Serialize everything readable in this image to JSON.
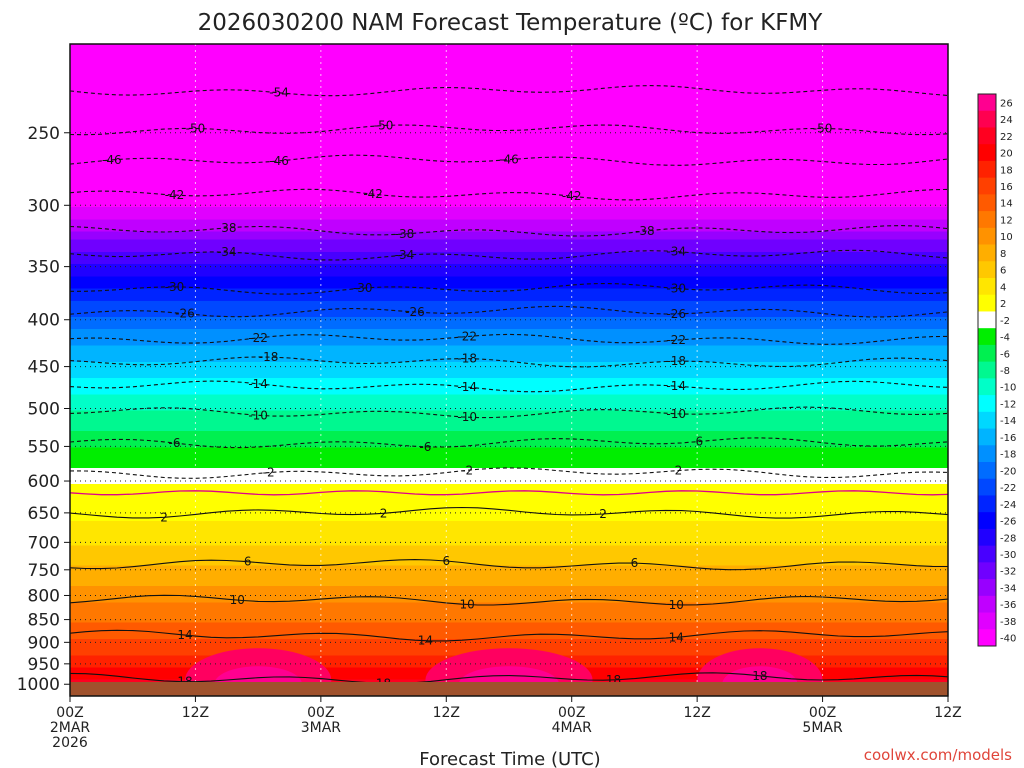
{
  "chart_data": {
    "type": "heatmap",
    "title": "2026030200 NAM Forecast Temperature (ºC) for KFMY",
    "xlabel": "Forecast Time (UTC)",
    "ylabel": "",
    "credit": "coolwx.com/models",
    "x_hours_range": [
      0,
      84
    ],
    "y_pressure_range": [
      1030,
      200
    ],
    "pressure_ticks": [
      250,
      300,
      350,
      400,
      450,
      500,
      550,
      600,
      650,
      700,
      750,
      800,
      850,
      900,
      950,
      1000
    ],
    "time_ticks": [
      {
        "hour": 0,
        "line1": "00Z",
        "line2": "2MAR",
        "line3": "2026"
      },
      {
        "hour": 12,
        "line1": "12Z",
        "line2": "",
        "line3": ""
      },
      {
        "hour": 24,
        "line1": "00Z",
        "line2": "3MAR",
        "line3": ""
      },
      {
        "hour": 36,
        "line1": "12Z",
        "line2": "",
        "line3": ""
      },
      {
        "hour": 48,
        "line1": "00Z",
        "line2": "4MAR",
        "line3": ""
      },
      {
        "hour": 60,
        "line1": "12Z",
        "line2": "",
        "line3": ""
      },
      {
        "hour": 72,
        "line1": "00Z",
        "line2": "5MAR",
        "line3": ""
      },
      {
        "hour": 84,
        "line1": "12Z",
        "line2": "",
        "line3": ""
      }
    ],
    "colorbar_labels": [
      "26",
      "24",
      "22",
      "20",
      "18",
      "16",
      "14",
      "12",
      "10",
      "8",
      "6",
      "4",
      "2",
      "-2",
      "-4",
      "-6",
      "-8",
      "-10",
      "-12",
      "-14",
      "-16",
      "-18",
      "-20",
      "-22",
      "-24",
      "-26",
      "-28",
      "-30",
      "-32",
      "-34",
      "-36",
      "-38",
      "-40"
    ],
    "colorbar_colors": [
      "#ff0090",
      "#ff0050",
      "#ff0020",
      "#ff0000",
      "#ff2200",
      "#ff4000",
      "#ff5a00",
      "#ff7800",
      "#ff9200",
      "#ffae00",
      "#ffc800",
      "#ffe600",
      "#ffff00",
      "#ffffff",
      "#00ee00",
      "#00f050",
      "#00f890",
      "#00ffc8",
      "#00ffff",
      "#00d8ff",
      "#00b4ff",
      "#0090ff",
      "#006cff",
      "#0048ff",
      "#0024ff",
      "#0000ff",
      "#2000ff",
      "#4800ff",
      "#7000ff",
      "#9800ff",
      "#c000ff",
      "#e000ff",
      "#ff00ff"
    ],
    "profile": [
      {
        "p": 1010,
        "t": 22
      },
      {
        "p": 1000,
        "t": 21
      },
      {
        "p": 975,
        "t": 19.5
      },
      {
        "p": 950,
        "t": 17.5
      },
      {
        "p": 925,
        "t": 16
      },
      {
        "p": 900,
        "t": 14.5
      },
      {
        "p": 850,
        "t": 12
      },
      {
        "p": 800,
        "t": 9.5
      },
      {
        "p": 750,
        "t": 6.5
      },
      {
        "p": 700,
        "t": 4
      },
      {
        "p": 650,
        "t": 1.5
      },
      {
        "p": 625,
        "t": 0
      },
      {
        "p": 600,
        "t": -2
      },
      {
        "p": 550,
        "t": -6
      },
      {
        "p": 500,
        "t": -10
      },
      {
        "p": 450,
        "t": -15
      },
      {
        "p": 400,
        "t": -21
      },
      {
        "p": 350,
        "t": -29
      },
      {
        "p": 300,
        "t": -40
      },
      {
        "p": 250,
        "t": -48
      },
      {
        "p": 200,
        "t": -57
      }
    ],
    "contours": [
      {
        "level": "-54",
        "p": 225,
        "label_hours": [
          20
        ]
      },
      {
        "level": "-50",
        "p": 248,
        "label_hours": [
          12,
          30,
          72
        ]
      },
      {
        "level": "-46",
        "p": 268,
        "label_hours": [
          4,
          20,
          42
        ]
      },
      {
        "level": "-42",
        "p": 292,
        "label_hours": [
          10,
          29,
          48
        ]
      },
      {
        "level": "-38",
        "p": 320,
        "label_hours": [
          15,
          32,
          55
        ]
      },
      {
        "level": "-34",
        "p": 340,
        "label_hours": [
          15,
          32,
          58
        ]
      },
      {
        "level": "-30",
        "p": 370,
        "label_hours": [
          10,
          28,
          58
        ]
      },
      {
        "level": "-26",
        "p": 392,
        "label_hours": [
          11,
          33,
          58
        ]
      },
      {
        "level": "-22",
        "p": 420,
        "label_hours": [
          18,
          38,
          58
        ]
      },
      {
        "level": "-18",
        "p": 445,
        "label_hours": [
          19,
          38,
          58
        ]
      },
      {
        "level": "-14",
        "p": 473,
        "label_hours": [
          18,
          38,
          58
        ]
      },
      {
        "level": "-10",
        "p": 505,
        "label_hours": [
          18,
          38,
          58
        ]
      },
      {
        "level": "-6",
        "p": 545,
        "label_hours": [
          10,
          34,
          60
        ]
      },
      {
        "level": "-2",
        "p": 588,
        "label_hours": [
          19,
          38,
          58
        ]
      },
      {
        "level": "2",
        "p": 650,
        "label_hours": [
          9,
          30,
          51
        ]
      },
      {
        "level": "6",
        "p": 740,
        "label_hours": [
          17,
          36,
          54
        ]
      },
      {
        "level": "10",
        "p": 810,
        "label_hours": [
          16,
          38,
          58
        ]
      },
      {
        "level": "14",
        "p": 885,
        "label_hours": [
          11,
          34,
          58
        ]
      },
      {
        "level": "18",
        "p": 985,
        "label_hours": [
          11,
          30,
          52,
          66
        ]
      }
    ]
  }
}
